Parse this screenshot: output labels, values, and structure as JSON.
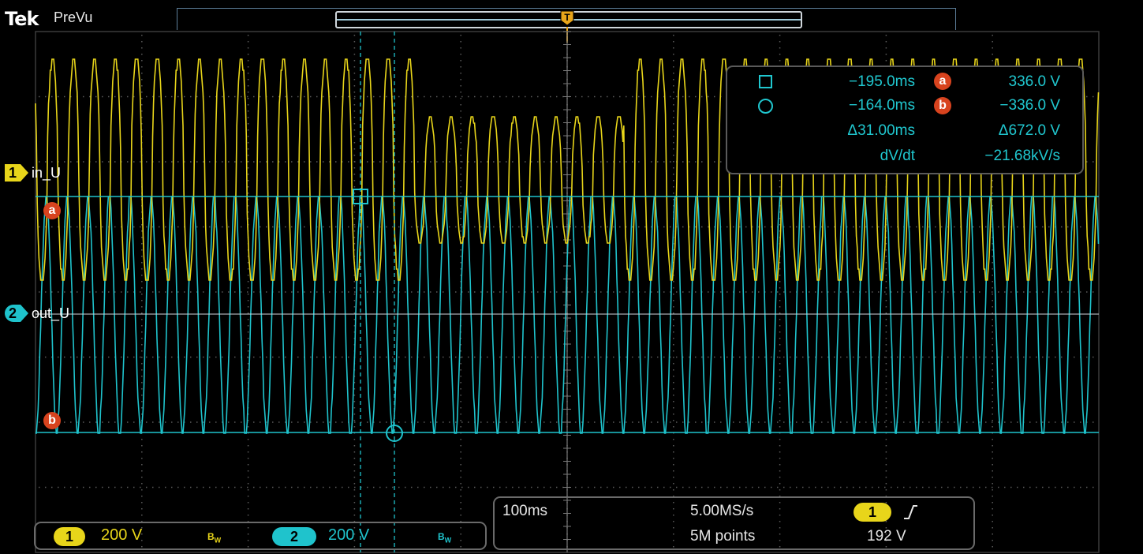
{
  "header": {
    "brand": "Tek",
    "mode": "PreVu"
  },
  "colors": {
    "ch1": "#e8d51a",
    "ch2": "#1fc3cc",
    "cursor_badge": "#d8431e",
    "trigger": "#e8a51a"
  },
  "channels": [
    {
      "number": "1",
      "label": "in_U",
      "scale": "200 V",
      "bw_mark": "BW"
    },
    {
      "number": "2",
      "label": "out_U",
      "scale": "200 V",
      "bw_mark": "BW"
    }
  ],
  "cursors": {
    "a_label": "a",
    "b_label": "b",
    "readout": {
      "t1": "−195.0ms",
      "t2": "−164.0ms",
      "dt": "Δ31.00ms",
      "va": "336.0 V",
      "vb": "−336.0 V",
      "dv": "Δ672.0 V",
      "dvdt_label": "dV/dt",
      "dvdt_value": "−21.68kV/s"
    }
  },
  "acquisition": {
    "horizontal_scale": "100ms",
    "sample_rate": "5.00MS/s",
    "record_length": "5M points",
    "trigger_source": "1",
    "trigger_slope_icon": "rising-edge-icon",
    "trigger_level": "192 V"
  },
  "icons": {
    "trigger_position": "trigger-position-icon",
    "cursor_a_marker": "square-cursor-icon",
    "cursor_b_marker": "circle-cursor-icon"
  }
}
